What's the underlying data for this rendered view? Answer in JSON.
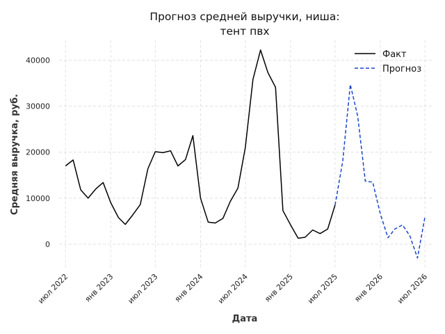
{
  "chart_data": {
    "type": "line",
    "title_lines": [
      "Прогноз средней выручки, ниша:",
      "тент пвх"
    ],
    "xlabel": "Дата",
    "ylabel": "Средняя выручка, руб.",
    "ylim": [
      -5300,
      44300
    ],
    "xlim": [
      "2022-06-05",
      "2026-08-01"
    ],
    "yticks": [
      0,
      10000,
      20000,
      30000,
      40000
    ],
    "xticks": [
      {
        "date": "2022-07-01",
        "label": "июл 2022"
      },
      {
        "date": "2023-01-01",
        "label": "янв 2023"
      },
      {
        "date": "2023-07-01",
        "label": "июл 2023"
      },
      {
        "date": "2024-01-01",
        "label": "янв 2024"
      },
      {
        "date": "2024-07-01",
        "label": "июл 2024"
      },
      {
        "date": "2025-01-01",
        "label": "янв 2025"
      },
      {
        "date": "2025-07-01",
        "label": "июл 2025"
      },
      {
        "date": "2026-01-01",
        "label": "янв 2026"
      },
      {
        "date": "2026-07-01",
        "label": "июл 2026"
      }
    ],
    "grid": true,
    "legend_position": "top-right",
    "series": [
      {
        "name": "Факт",
        "color": "#000000",
        "style": "solid",
        "points": [
          [
            "2022-07-01",
            17000
          ],
          [
            "2022-08-01",
            18300
          ],
          [
            "2022-09-01",
            11800
          ],
          [
            "2022-10-01",
            10000
          ],
          [
            "2022-11-01",
            12000
          ],
          [
            "2022-12-01",
            13400
          ],
          [
            "2023-01-01",
            9000
          ],
          [
            "2023-02-01",
            5800
          ],
          [
            "2023-03-01",
            4300
          ],
          [
            "2023-04-01",
            6400
          ],
          [
            "2023-05-01",
            8600
          ],
          [
            "2023-06-01",
            16400
          ],
          [
            "2023-07-01",
            20100
          ],
          [
            "2023-08-01",
            19900
          ],
          [
            "2023-09-01",
            20300
          ],
          [
            "2023-10-01",
            17000
          ],
          [
            "2023-11-01",
            18400
          ],
          [
            "2023-12-01",
            23600
          ],
          [
            "2024-01-01",
            10000
          ],
          [
            "2024-02-01",
            4800
          ],
          [
            "2024-03-01",
            4600
          ],
          [
            "2024-04-01",
            5600
          ],
          [
            "2024-05-01",
            9300
          ],
          [
            "2024-06-01",
            12200
          ],
          [
            "2024-07-01",
            21000
          ],
          [
            "2024-08-01",
            35800
          ],
          [
            "2024-09-01",
            42200
          ],
          [
            "2024-10-01",
            37300
          ],
          [
            "2024-11-01",
            34100
          ],
          [
            "2024-12-01",
            7300
          ],
          [
            "2025-01-01",
            4200
          ],
          [
            "2025-02-01",
            1300
          ],
          [
            "2025-03-01",
            1500
          ],
          [
            "2025-04-01",
            3100
          ],
          [
            "2025-05-01",
            2300
          ],
          [
            "2025-06-01",
            3300
          ],
          [
            "2025-07-01",
            8500
          ]
        ]
      },
      {
        "name": "Прогноз",
        "color": "#1a44cc",
        "style": "dashed",
        "points": [
          [
            "2025-07-01",
            8500
          ],
          [
            "2025-08-01",
            18000
          ],
          [
            "2025-09-01",
            34700
          ],
          [
            "2025-10-01",
            27800
          ],
          [
            "2025-11-01",
            13700
          ],
          [
            "2025-12-01",
            13500
          ],
          [
            "2026-01-01",
            6600
          ],
          [
            "2026-02-01",
            1400
          ],
          [
            "2026-03-01",
            3300
          ],
          [
            "2026-04-01",
            4200
          ],
          [
            "2026-05-01",
            1800
          ],
          [
            "2026-06-01",
            -3000
          ],
          [
            "2026-07-01",
            5800
          ]
        ]
      }
    ]
  }
}
